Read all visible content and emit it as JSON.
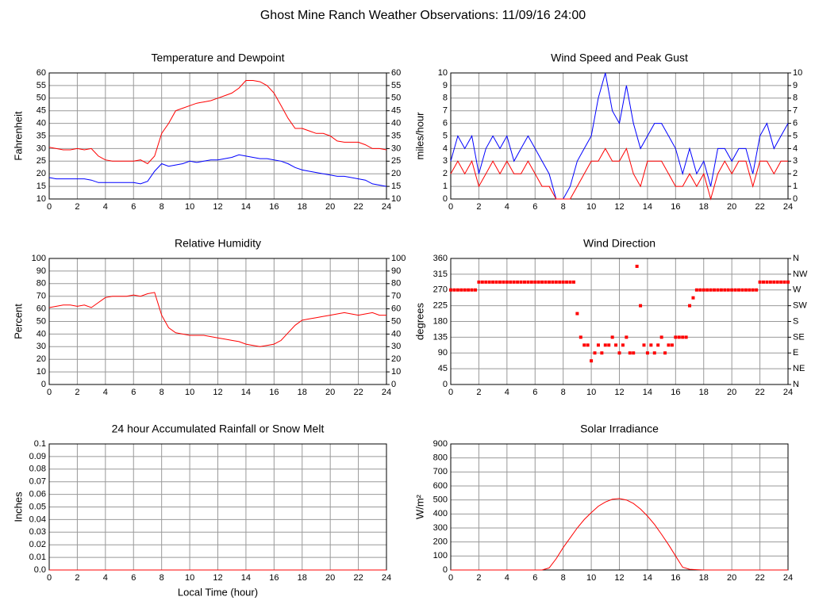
{
  "title": "Ghost Mine Ranch Weather Observations: 11/09/16 24:00",
  "chart_data": [
    {
      "type": "line",
      "title": "Temperature and Dewpoint",
      "ylabel": "Fahrenheit",
      "xlim": [
        0,
        24
      ],
      "xticks": [
        0,
        2,
        4,
        6,
        8,
        10,
        12,
        14,
        16,
        18,
        20,
        22,
        24
      ],
      "ylim": [
        10,
        60
      ],
      "yticks": [
        10,
        15,
        20,
        25,
        30,
        35,
        40,
        45,
        50,
        55,
        60
      ],
      "y2lim": [
        10,
        60
      ],
      "y2ticks": [
        10,
        15,
        20,
        25,
        30,
        35,
        40,
        45,
        50,
        55,
        60
      ],
      "grid": true,
      "x": [
        0,
        0.5,
        1,
        1.5,
        2,
        2.5,
        3,
        3.5,
        4,
        4.5,
        5,
        5.5,
        6,
        6.5,
        7,
        7.5,
        8,
        8.5,
        9,
        9.5,
        10,
        10.5,
        11,
        11.5,
        12,
        12.5,
        13,
        13.5,
        14,
        14.5,
        15,
        15.5,
        16,
        16.5,
        17,
        17.5,
        18,
        18.5,
        19,
        19.5,
        20,
        20.5,
        21,
        21.5,
        22,
        22.5,
        23,
        23.5,
        24
      ],
      "series": [
        {
          "color": "#ff0000",
          "values": [
            30.5,
            30,
            29.5,
            29.5,
            30,
            29.5,
            30,
            27,
            25.5,
            25,
            25,
            25,
            25,
            25.5,
            24,
            27,
            36,
            40,
            45,
            46,
            47,
            48,
            48.5,
            49,
            50,
            51,
            52,
            54,
            57,
            57,
            56.5,
            55,
            52,
            47,
            42,
            38,
            38,
            37,
            36,
            36,
            35,
            33,
            32.5,
            32.5,
            32.5,
            31.5,
            30,
            30,
            29.5
          ]
        },
        {
          "color": "#0000ff",
          "values": [
            18.5,
            18,
            18,
            18,
            18,
            18,
            17.5,
            16.5,
            16.5,
            16.5,
            16.5,
            16.5,
            16.5,
            16,
            17,
            21,
            24,
            23,
            23.5,
            24,
            25,
            24.5,
            25,
            25.5,
            25.5,
            26,
            26.5,
            27.5,
            27,
            26.5,
            26,
            26,
            25.5,
            25,
            24,
            22.5,
            21.5,
            21,
            20.5,
            20,
            19.5,
            19,
            19,
            18.5,
            18,
            17.5,
            16,
            15.5,
            15
          ]
        }
      ]
    },
    {
      "type": "line",
      "title": "Wind Speed and Peak Gust",
      "ylabel": "miles/hour",
      "xlim": [
        0,
        24
      ],
      "xticks": [
        0,
        2,
        4,
        6,
        8,
        10,
        12,
        14,
        16,
        18,
        20,
        22,
        24
      ],
      "ylim": [
        0,
        10
      ],
      "yticks": [
        0,
        1,
        2,
        3,
        4,
        5,
        6,
        7,
        8,
        9,
        10
      ],
      "y2lim": [
        0,
        10
      ],
      "y2ticks": [
        0,
        1,
        2,
        3,
        4,
        5,
        6,
        7,
        8,
        9,
        10
      ],
      "grid": true,
      "x": [
        0,
        0.5,
        1,
        1.5,
        2,
        2.5,
        3,
        3.5,
        4,
        4.5,
        5,
        5.5,
        6,
        6.5,
        7,
        7.5,
        8,
        8.5,
        9,
        9.5,
        10,
        10.5,
        11,
        11.5,
        12,
        12.5,
        13,
        13.5,
        14,
        14.5,
        15,
        15.5,
        16,
        16.5,
        17,
        17.5,
        18,
        18.5,
        19,
        19.5,
        20,
        20.5,
        21,
        21.5,
        22,
        22.5,
        23,
        23.5,
        24
      ],
      "series": [
        {
          "color": "#0000ff",
          "values": [
            3,
            5,
            4,
            5,
            2,
            4,
            5,
            4,
            5,
            3,
            4,
            5,
            4,
            3,
            2,
            0,
            0,
            1,
            3,
            4,
            5,
            8,
            10,
            7,
            6,
            9,
            6,
            4,
            5,
            6,
            6,
            5,
            4,
            2,
            4,
            2,
            3,
            1,
            4,
            4,
            3,
            4,
            4,
            2,
            5,
            6,
            4,
            5,
            6
          ]
        },
        {
          "color": "#ff0000",
          "values": [
            2,
            3,
            2,
            3,
            1,
            2,
            3,
            2,
            3,
            2,
            2,
            3,
            2,
            1,
            1,
            0,
            0,
            0,
            1,
            2,
            3,
            3,
            4,
            3,
            3,
            4,
            2,
            1,
            3,
            3,
            3,
            2,
            1,
            1,
            2,
            1,
            2,
            0,
            2,
            3,
            2,
            3,
            3,
            1,
            3,
            3,
            2,
            3,
            3
          ]
        }
      ]
    },
    {
      "type": "line",
      "title": "Relative Humidity",
      "ylabel": "Percent",
      "xlim": [
        0,
        24
      ],
      "xticks": [
        0,
        2,
        4,
        6,
        8,
        10,
        12,
        14,
        16,
        18,
        20,
        22,
        24
      ],
      "ylim": [
        0,
        100
      ],
      "yticks": [
        0,
        10,
        20,
        30,
        40,
        50,
        60,
        70,
        80,
        90,
        100
      ],
      "y2lim": [
        0,
        100
      ],
      "y2ticks": [
        0,
        10,
        20,
        30,
        40,
        50,
        60,
        70,
        80,
        90,
        100
      ],
      "grid": true,
      "x": [
        0,
        0.5,
        1,
        1.5,
        2,
        2.5,
        3,
        3.5,
        4,
        4.5,
        5,
        5.5,
        6,
        6.5,
        7,
        7.5,
        8,
        8.5,
        9,
        9.5,
        10,
        10.5,
        11,
        11.5,
        12,
        12.5,
        13,
        13.5,
        14,
        14.5,
        15,
        15.5,
        16,
        16.5,
        17,
        17.5,
        18,
        18.5,
        19,
        19.5,
        20,
        20.5,
        21,
        21.5,
        22,
        22.5,
        23,
        23.5,
        24
      ],
      "series": [
        {
          "color": "#ff0000",
          "values": [
            61,
            62,
            63,
            63,
            62,
            63,
            61,
            65,
            69,
            70,
            70,
            70,
            71,
            70,
            72,
            73,
            55,
            45,
            41,
            40,
            39,
            39,
            39,
            38,
            37,
            36,
            35,
            34,
            32,
            31,
            30,
            31,
            32,
            35,
            41,
            47,
            51,
            52,
            53,
            54,
            55,
            56,
            57,
            56,
            55,
            56,
            57,
            55,
            55
          ]
        }
      ]
    },
    {
      "type": "scatter",
      "title": "Wind Direction",
      "ylabel": "degrees",
      "xlim": [
        0,
        24
      ],
      "xticks": [
        0,
        2,
        4,
        6,
        8,
        10,
        12,
        14,
        16,
        18,
        20,
        22,
        24
      ],
      "ylim": [
        0,
        360
      ],
      "yticks": [
        0,
        45,
        90,
        135,
        180,
        225,
        270,
        315,
        360
      ],
      "y2lim": [
        0,
        360
      ],
      "y2ticks": [
        {
          "value": 0,
          "label": "N"
        },
        {
          "value": 45,
          "label": "NE"
        },
        {
          "value": 90,
          "label": "E"
        },
        {
          "value": 135,
          "label": "SE"
        },
        {
          "value": 180,
          "label": "S"
        },
        {
          "value": 225,
          "label": "SW"
        },
        {
          "value": 270,
          "label": "W"
        },
        {
          "value": 315,
          "label": "NW"
        },
        {
          "value": 360,
          "label": "N"
        }
      ],
      "grid": true,
      "x": [
        0,
        0.25,
        0.5,
        0.75,
        1,
        1.25,
        1.5,
        1.75,
        2,
        2.25,
        2.5,
        2.75,
        3,
        3.25,
        3.5,
        3.75,
        4,
        4.25,
        4.5,
        4.75,
        5,
        5.25,
        5.5,
        5.75,
        6,
        6.25,
        6.5,
        6.75,
        7,
        7.25,
        7.5,
        7.75,
        8,
        8.25,
        8.5,
        8.75,
        9,
        9.25,
        9.5,
        9.75,
        10,
        10.25,
        10.5,
        10.75,
        11,
        11.25,
        11.5,
        11.75,
        12,
        12.25,
        12.5,
        12.75,
        13,
        13.25,
        13.5,
        13.75,
        14,
        14.25,
        14.5,
        14.75,
        15,
        15.25,
        15.5,
        15.75,
        16,
        16.25,
        16.5,
        16.75,
        17,
        17.25,
        17.5,
        17.75,
        18,
        18.25,
        18.5,
        18.75,
        19,
        19.25,
        19.5,
        19.75,
        20,
        20.25,
        20.5,
        20.75,
        21,
        21.25,
        21.5,
        21.75,
        22,
        22.25,
        22.5,
        22.75,
        23,
        23.25,
        23.5,
        23.75,
        24
      ],
      "series": [
        {
          "color": "#ff0000",
          "values": [
            270,
            270,
            270,
            270,
            270,
            270,
            270,
            270,
            292.5,
            292.5,
            292.5,
            292.5,
            292.5,
            292.5,
            292.5,
            292.5,
            292.5,
            292.5,
            292.5,
            292.5,
            292.5,
            292.5,
            292.5,
            292.5,
            292.5,
            292.5,
            292.5,
            292.5,
            292.5,
            292.5,
            292.5,
            292.5,
            292.5,
            292.5,
            292.5,
            292.5,
            202.5,
            135,
            112.5,
            112.5,
            67.5,
            90,
            112.5,
            90,
            112.5,
            112.5,
            135,
            112.5,
            90,
            112.5,
            135,
            90,
            90,
            337.5,
            225,
            112.5,
            90,
            112.5,
            90,
            112.5,
            135,
            90,
            112.5,
            112.5,
            135,
            135,
            135,
            135,
            225,
            247.5,
            270,
            270,
            270,
            270,
            270,
            270,
            270,
            270,
            270,
            270,
            270,
            270,
            270,
            270,
            270,
            270,
            270,
            270,
            292.5,
            292.5,
            292.5,
            292.5,
            292.5,
            292.5,
            292.5,
            292.5,
            292.5
          ]
        }
      ]
    },
    {
      "type": "line",
      "title": "24 hour Accumulated Rainfall or Snow Melt",
      "ylabel": "Inches",
      "xlabel": "Local Time (hour)",
      "xlim": [
        0,
        24
      ],
      "xticks": [
        0,
        2,
        4,
        6,
        8,
        10,
        12,
        14,
        16,
        18,
        20,
        22,
        24
      ],
      "ylim": [
        0,
        0.1
      ],
      "yticks": [
        {
          "value": 0,
          "label": "0.0"
        },
        0.01,
        0.02,
        0.03,
        0.04,
        0.05,
        0.06,
        0.07,
        0.08,
        0.09,
        0.1
      ],
      "grid": true,
      "x": [
        0,
        24
      ],
      "series": [
        {
          "color": "#ff0000",
          "values": [
            0,
            0
          ]
        }
      ]
    },
    {
      "type": "line",
      "title": "Solar Irradiance",
      "ylabel": "W/m²",
      "xlim": [
        0,
        24
      ],
      "xticks": [
        0,
        2,
        4,
        6,
        8,
        10,
        12,
        14,
        16,
        18,
        20,
        22,
        24
      ],
      "ylim": [
        0,
        900
      ],
      "yticks": [
        0,
        100,
        200,
        300,
        400,
        500,
        600,
        700,
        800,
        900
      ],
      "grid": true,
      "x": [
        0,
        0.5,
        1,
        1.5,
        2,
        2.5,
        3,
        3.5,
        4,
        4.5,
        5,
        5.5,
        6,
        6.5,
        7,
        7.5,
        8,
        8.5,
        9,
        9.5,
        10,
        10.5,
        11,
        11.5,
        12,
        12.5,
        13,
        13.5,
        14,
        14.5,
        15,
        15.5,
        16,
        16.5,
        17,
        17.5,
        18,
        18.5,
        19,
        19.5,
        20,
        20.5,
        21,
        21.5,
        22,
        22.5,
        23,
        23.5,
        24
      ],
      "series": [
        {
          "color": "#ff0000",
          "values": [
            0,
            0,
            0,
            0,
            0,
            0,
            0,
            0,
            0,
            0,
            0,
            0,
            0,
            0,
            15,
            80,
            160,
            230,
            300,
            360,
            410,
            455,
            485,
            505,
            510,
            500,
            475,
            435,
            385,
            325,
            255,
            180,
            100,
            20,
            5,
            2,
            0,
            0,
            0,
            0,
            0,
            0,
            0,
            0,
            0,
            0,
            0,
            0,
            0
          ]
        }
      ]
    }
  ]
}
